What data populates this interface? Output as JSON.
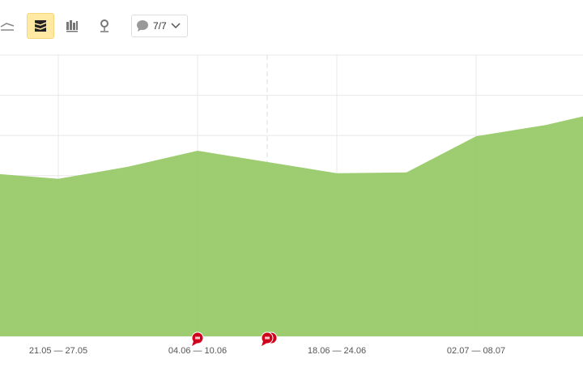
{
  "toolbar": {
    "buttons": [
      {
        "icon": "line-chart-icon",
        "active": false
      },
      {
        "icon": "area-stack-icon",
        "active": true
      },
      {
        "icon": "bar-chart-icon",
        "active": false
      },
      {
        "icon": "map-pin-icon",
        "active": false
      }
    ],
    "comments_filter": {
      "icon": "comment-icon",
      "value": "7/7"
    }
  },
  "chart_data": {
    "type": "area",
    "x": [
      "",
      "21.05 — 27.05",
      "",
      "04.06 — 10.06",
      "",
      "18.06 — 24.06",
      "",
      "02.07 — 08.07",
      "",
      ""
    ],
    "tick_labels": [
      "21.05 — 27.05",
      "04.06 — 10.06",
      "18.06 — 24.06",
      "02.07 — 08.07"
    ],
    "values": [
      4.06,
      3.92,
      4.22,
      4.62,
      4.34,
      4.06,
      4.08,
      4.98,
      5.26,
      5.66
    ],
    "ylim": [
      0,
      7
    ],
    "grid": true,
    "color": "#98ca68",
    "annotations": [
      {
        "index": 3,
        "type": "comment",
        "color": "#d0021b"
      },
      {
        "index": 4,
        "type": "comment-group",
        "color": "#d0021b"
      }
    ]
  }
}
